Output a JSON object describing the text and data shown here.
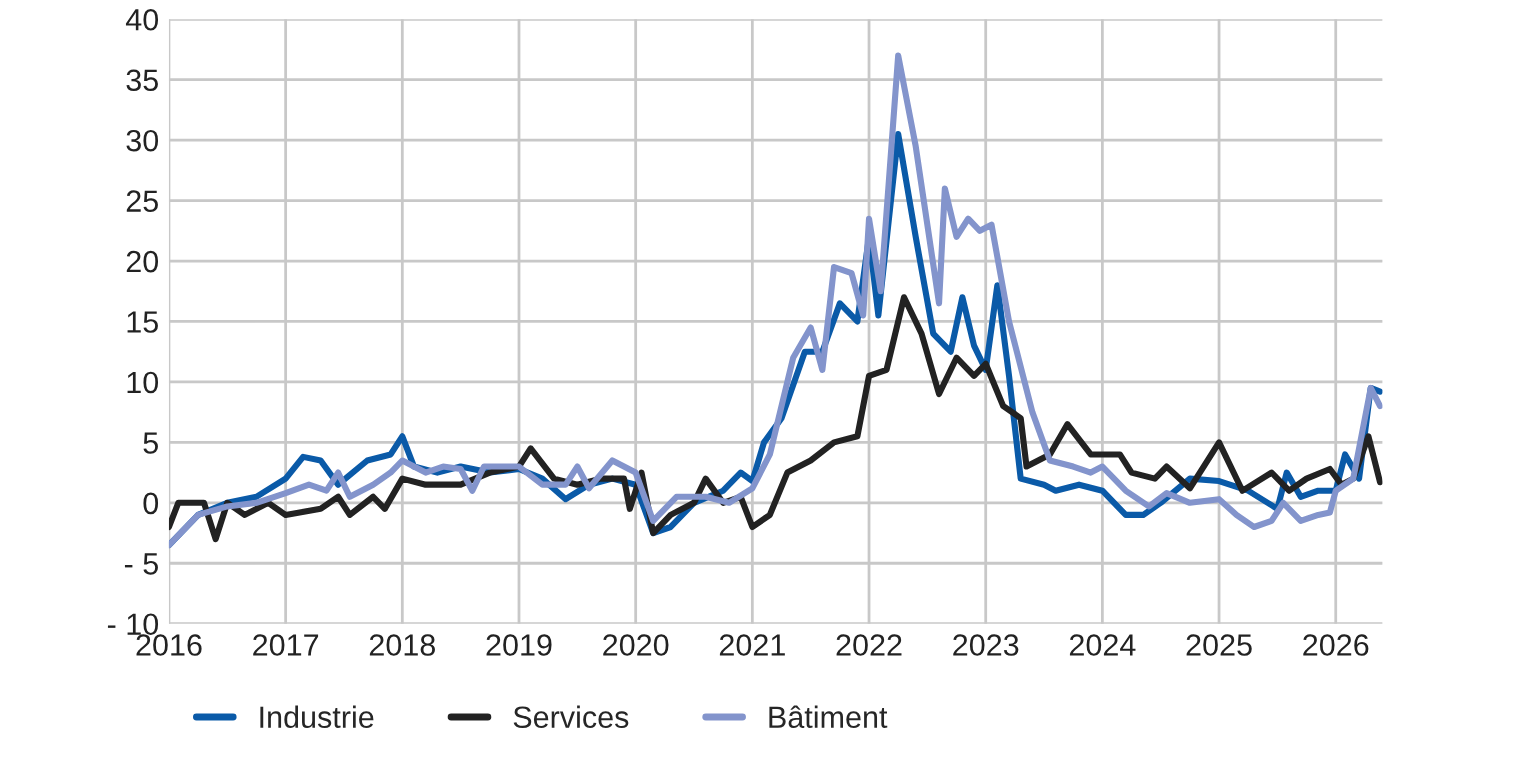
{
  "chart_data": {
    "type": "line",
    "xlim": [
      2016,
      2026.4
    ],
    "ylim": [
      -10,
      40
    ],
    "xticks": [
      2016,
      2017,
      2018,
      2019,
      2020,
      2021,
      2022,
      2023,
      2024,
      2025,
      2026
    ],
    "yticks": [
      {
        "value": -10,
        "label": "- 10"
      },
      {
        "value": -5,
        "label": "- 5"
      },
      0,
      5,
      10,
      15,
      20,
      25,
      30,
      35,
      40
    ],
    "grid": true,
    "legend": "bottom",
    "line_style": "solid",
    "marker": "none",
    "series": [
      {
        "name": "Industrie",
        "color": "#0a5aa8",
        "x": [
          2016.0,
          2016.25,
          2016.5,
          2016.75,
          2017.0,
          2017.15,
          2017.3,
          2017.45,
          2017.7,
          2017.9,
          2018.0,
          2018.1,
          2018.3,
          2018.5,
          2018.75,
          2019.0,
          2019.2,
          2019.4,
          2019.6,
          2019.8,
          2020.0,
          2020.15,
          2020.3,
          2020.5,
          2020.75,
          2020.9,
          2021.0,
          2021.1,
          2021.25,
          2021.45,
          2021.6,
          2021.75,
          2021.9,
          2022.0,
          2022.08,
          2022.25,
          2022.4,
          2022.55,
          2022.7,
          2022.8,
          2022.9,
          2023.0,
          2023.1,
          2023.2,
          2023.3,
          2023.5,
          2023.6,
          2023.8,
          2024.0,
          2024.2,
          2024.35,
          2024.5,
          2024.75,
          2025.0,
          2025.25,
          2025.5,
          2025.58,
          2025.7,
          2025.85,
          2026.0,
          2026.08,
          2026.2,
          2026.3,
          2026.38
        ],
        "values": [
          -3.5,
          -1,
          0,
          0.5,
          2,
          3.8,
          3.5,
          1.5,
          3.5,
          4,
          5.5,
          3,
          2.5,
          3,
          2.5,
          2.8,
          2,
          0.3,
          1.5,
          2,
          1.5,
          -2.5,
          -2,
          0,
          1,
          2.5,
          1.8,
          5,
          7,
          12.5,
          12.5,
          16.5,
          15,
          22,
          15.5,
          30.5,
          22,
          14,
          12.5,
          17,
          13,
          11,
          18,
          10.5,
          2,
          1.5,
          1,
          1.5,
          1,
          -1,
          -1,
          0,
          2,
          1.8,
          1,
          -0.5,
          2.5,
          0.5,
          1,
          1,
          4,
          2,
          9.5,
          9.2
        ]
      },
      {
        "name": "Services",
        "color": "#222222",
        "x": [
          2016.0,
          2016.08,
          2016.3,
          2016.4,
          2016.5,
          2016.65,
          2016.85,
          2017.0,
          2017.3,
          2017.45,
          2017.55,
          2017.75,
          2017.85,
          2018.0,
          2018.2,
          2018.5,
          2018.75,
          2019.0,
          2019.1,
          2019.3,
          2019.5,
          2019.7,
          2019.9,
          2019.95,
          2020.05,
          2020.15,
          2020.3,
          2020.5,
          2020.6,
          2020.75,
          2020.9,
          2021.0,
          2021.15,
          2021.3,
          2021.5,
          2021.7,
          2021.9,
          2022.0,
          2022.15,
          2022.3,
          2022.45,
          2022.6,
          2022.75,
          2022.9,
          2023.0,
          2023.15,
          2023.3,
          2023.35,
          2023.55,
          2023.7,
          2023.9,
          2024.15,
          2024.25,
          2024.45,
          2024.55,
          2024.75,
          2025.0,
          2025.2,
          2025.45,
          2025.6,
          2025.75,
          2025.95,
          2026.05,
          2026.15,
          2026.28,
          2026.38
        ],
        "values": [
          -2,
          0,
          0,
          -3,
          0,
          -1,
          0,
          -1,
          -0.5,
          0.5,
          -1,
          0.5,
          -0.5,
          2,
          1.5,
          1.5,
          2.5,
          3,
          4.5,
          2,
          1.5,
          2,
          2,
          -0.5,
          2.5,
          -2.5,
          -1,
          0,
          2,
          0,
          0.5,
          -2,
          -1,
          2.5,
          3.5,
          5,
          5.5,
          10.5,
          11,
          17,
          14,
          9,
          12,
          10.5,
          11.5,
          8,
          7,
          3,
          4,
          6.5,
          4,
          4,
          2.5,
          2,
          3,
          1.2,
          5,
          1,
          2.5,
          1,
          2,
          2.8,
          1.5,
          2,
          5.5,
          1.7
        ]
      },
      {
        "name": "Bâtiment",
        "color": "#8394cc",
        "x": [
          2016.0,
          2016.25,
          2016.5,
          2016.75,
          2017.0,
          2017.2,
          2017.35,
          2017.45,
          2017.55,
          2017.75,
          2017.9,
          2018.0,
          2018.2,
          2018.35,
          2018.5,
          2018.6,
          2018.7,
          2018.9,
          2019.0,
          2019.2,
          2019.4,
          2019.5,
          2019.6,
          2019.8,
          2020.0,
          2020.15,
          2020.35,
          2020.6,
          2020.8,
          2021.0,
          2021.15,
          2021.35,
          2021.5,
          2021.6,
          2021.7,
          2021.85,
          2021.95,
          2022.0,
          2022.1,
          2022.25,
          2022.4,
          2022.6,
          2022.65,
          2022.75,
          2022.85,
          2022.95,
          2023.05,
          2023.2,
          2023.4,
          2023.55,
          2023.75,
          2023.9,
          2024.0,
          2024.2,
          2024.4,
          2024.55,
          2024.75,
          2025.0,
          2025.15,
          2025.3,
          2025.45,
          2025.55,
          2025.7,
          2025.85,
          2025.95,
          2026.0,
          2026.15,
          2026.3,
          2026.38
        ],
        "values": [
          -3.5,
          -1,
          -0.3,
          0,
          0.8,
          1.5,
          1,
          2.5,
          0.5,
          1.5,
          2.5,
          3.5,
          2.5,
          3,
          2.8,
          1,
          3,
          3,
          3,
          1.5,
          1.5,
          3,
          1.2,
          3.5,
          2.5,
          -1.5,
          0.5,
          0.5,
          0,
          1.2,
          4,
          12,
          14.5,
          11,
          19.5,
          19,
          15.5,
          23.5,
          17.5,
          37,
          29.5,
          16.5,
          26,
          22,
          23.5,
          22.5,
          23,
          15,
          7.5,
          3.5,
          3,
          2.5,
          3,
          1,
          -0.3,
          0.8,
          0,
          0.3,
          -1,
          -2,
          -1.5,
          0,
          -1.5,
          -1,
          -0.8,
          1,
          2,
          9.5,
          8
        ]
      }
    ]
  }
}
